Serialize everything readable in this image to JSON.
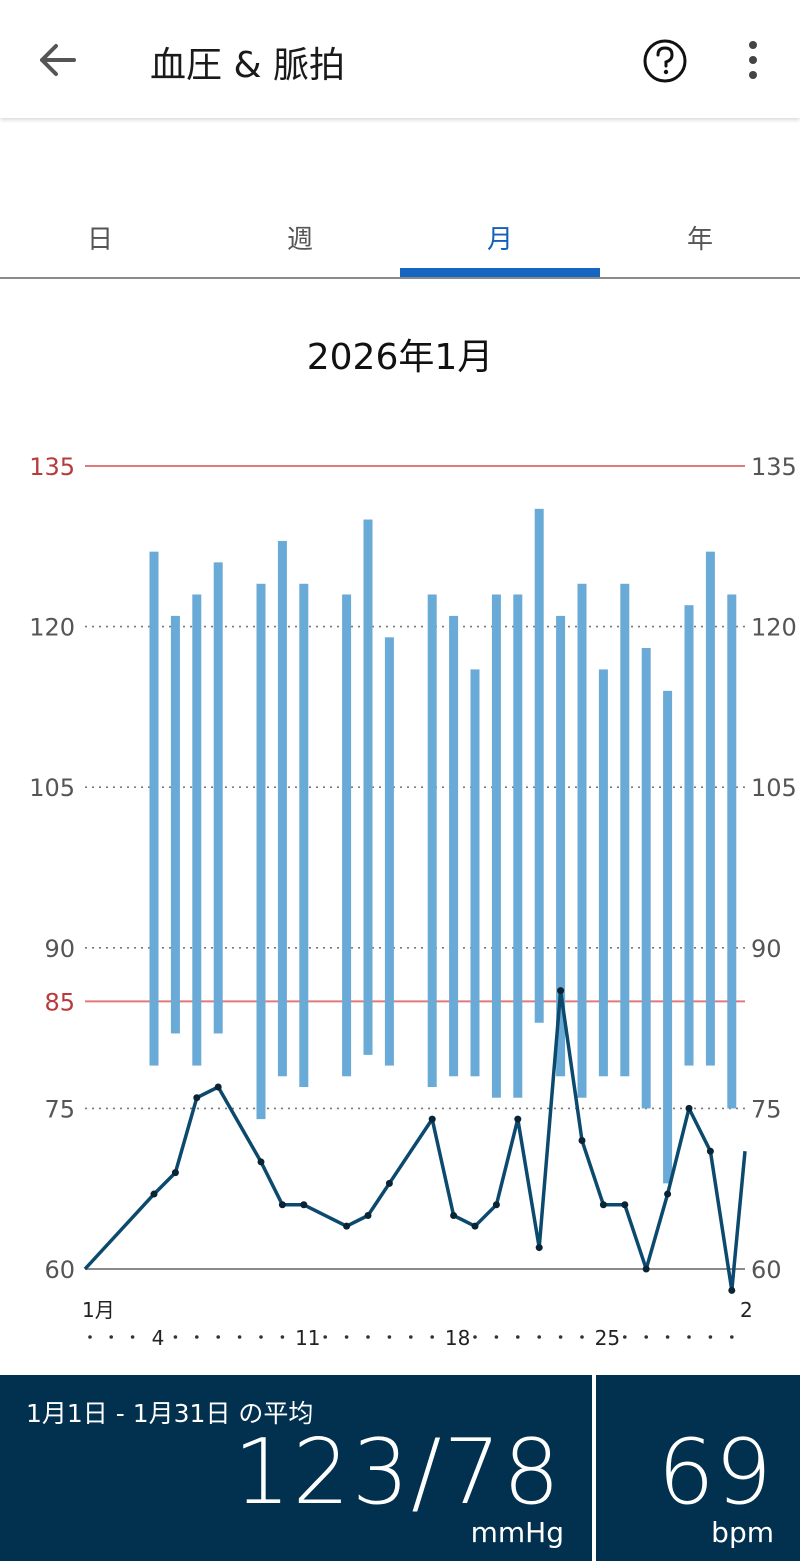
{
  "header": {
    "title": "血圧 & 脈拍",
    "back_icon": "arrow-left-icon",
    "help_icon": "help-circle-icon",
    "more_icon": "more-vertical-icon"
  },
  "tabs": [
    {
      "label": "日",
      "active": false
    },
    {
      "label": "週",
      "active": false
    },
    {
      "label": "月",
      "active": true
    },
    {
      "label": "年",
      "active": false
    }
  ],
  "period_label": "2026年1月",
  "chart_data": {
    "type": "bar",
    "subtype": "range-bars-with-pulse-line",
    "x_domain": [
      1,
      31
    ],
    "ylim": [
      60,
      135
    ],
    "y_ticks": [
      60,
      75,
      90,
      105,
      120,
      135
    ],
    "y_ticks_right": [
      60,
      75,
      90,
      105,
      120,
      135
    ],
    "threshold_lines": [
      {
        "value": 135,
        "color": "#e07a7a",
        "label_color": "#b83a3a"
      },
      {
        "value": 85,
        "color": "#e07a7a",
        "label_color": "#b83a3a"
      }
    ],
    "x_tick_labels": [
      {
        "day": 1,
        "label": "1月"
      },
      {
        "day": 4,
        "label": "4"
      },
      {
        "day": 11,
        "label": "11"
      },
      {
        "day": 18,
        "label": "18"
      },
      {
        "day": 25,
        "label": "25"
      },
      {
        "day": 31,
        "label": "2"
      }
    ],
    "blood_pressure": [
      {
        "day": 4,
        "systolic": 127,
        "diastolic": 79
      },
      {
        "day": 5,
        "systolic": 121,
        "diastolic": 82
      },
      {
        "day": 6,
        "systolic": 123,
        "diastolic": 79
      },
      {
        "day": 7,
        "systolic": 126,
        "diastolic": 82
      },
      {
        "day": 9,
        "systolic": 124,
        "diastolic": 74
      },
      {
        "day": 10,
        "systolic": 128,
        "diastolic": 78
      },
      {
        "day": 11,
        "systolic": 124,
        "diastolic": 77
      },
      {
        "day": 13,
        "systolic": 123,
        "diastolic": 78
      },
      {
        "day": 14,
        "systolic": 130,
        "diastolic": 80
      },
      {
        "day": 15,
        "systolic": 119,
        "diastolic": 79
      },
      {
        "day": 17,
        "systolic": 123,
        "diastolic": 77
      },
      {
        "day": 18,
        "systolic": 121,
        "diastolic": 78
      },
      {
        "day": 19,
        "systolic": 116,
        "diastolic": 78
      },
      {
        "day": 20,
        "systolic": 123,
        "diastolic": 76
      },
      {
        "day": 21,
        "systolic": 123,
        "diastolic": 76
      },
      {
        "day": 22,
        "systolic": 131,
        "diastolic": 83
      },
      {
        "day": 23,
        "systolic": 121,
        "diastolic": 78
      },
      {
        "day": 24,
        "systolic": 124,
        "diastolic": 76
      },
      {
        "day": 25,
        "systolic": 116,
        "diastolic": 78
      },
      {
        "day": 26,
        "systolic": 124,
        "diastolic": 78
      },
      {
        "day": 27,
        "systolic": 118,
        "diastolic": 75
      },
      {
        "day": 28,
        "systolic": 114,
        "diastolic": 68
      },
      {
        "day": 29,
        "systolic": 122,
        "diastolic": 79
      },
      {
        "day": 30,
        "systolic": 127,
        "diastolic": 79
      },
      {
        "day": 31,
        "systolic": 123,
        "diastolic": 75
      }
    ],
    "pulse": [
      {
        "day": 1,
        "value": 60
      },
      {
        "day": 4,
        "value": 67
      },
      {
        "day": 5,
        "value": 69
      },
      {
        "day": 6,
        "value": 76
      },
      {
        "day": 7,
        "value": 77
      },
      {
        "day": 9,
        "value": 70
      },
      {
        "day": 10,
        "value": 66
      },
      {
        "day": 11,
        "value": 66
      },
      {
        "day": 13,
        "value": 64
      },
      {
        "day": 14,
        "value": 65
      },
      {
        "day": 15,
        "value": 68
      },
      {
        "day": 17,
        "value": 74
      },
      {
        "day": 18,
        "value": 65
      },
      {
        "day": 19,
        "value": 64
      },
      {
        "day": 20,
        "value": 66
      },
      {
        "day": 21,
        "value": 74
      },
      {
        "day": 22,
        "value": 62
      },
      {
        "day": 23,
        "value": 86
      },
      {
        "day": 24,
        "value": 72
      },
      {
        "day": 25,
        "value": 66
      },
      {
        "day": 26,
        "value": 66
      },
      {
        "day": 27,
        "value": 60
      },
      {
        "day": 28,
        "value": 67
      },
      {
        "day": 29,
        "value": 75
      },
      {
        "day": 30,
        "value": 71
      },
      {
        "day": 31,
        "value": 58
      }
    ],
    "colors": {
      "bp_bar": "#6aaad6",
      "pulse_line": "#0b4a6e",
      "grid": "#7a7a7a",
      "threshold": "#e07a7a"
    }
  },
  "summary": {
    "label": "1月1日 - 1月31日 の平均",
    "bp_value": "123/78",
    "bp_unit": "mmHg",
    "pulse_value": "69",
    "pulse_unit": "bpm"
  }
}
